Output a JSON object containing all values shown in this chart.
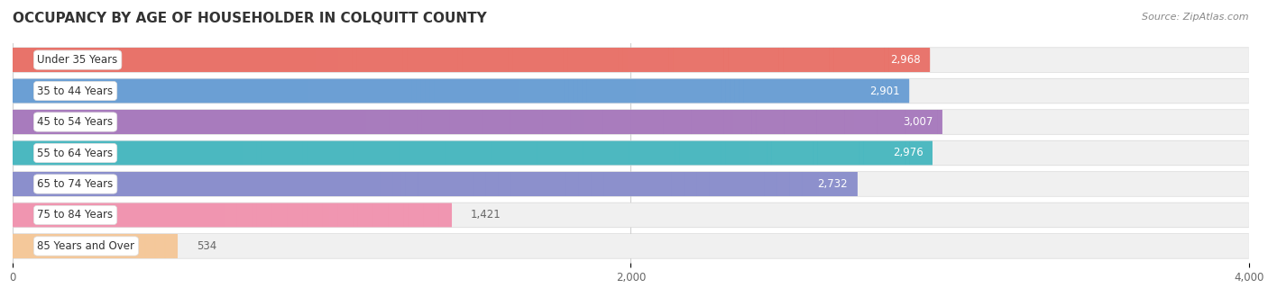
{
  "title": "OCCUPANCY BY AGE OF HOUSEHOLDER IN COLQUITT COUNTY",
  "source": "Source: ZipAtlas.com",
  "categories": [
    "Under 35 Years",
    "35 to 44 Years",
    "45 to 54 Years",
    "55 to 64 Years",
    "65 to 74 Years",
    "75 to 84 Years",
    "85 Years and Over"
  ],
  "values": [
    2968,
    2901,
    3007,
    2976,
    2732,
    1421,
    534
  ],
  "bar_colors": [
    "#E8736A",
    "#6B9FD4",
    "#A87BBD",
    "#4BB8C0",
    "#8B8FCC",
    "#F095B0",
    "#F5C89A"
  ],
  "xlim": [
    0,
    4000
  ],
  "xticks": [
    0,
    2000,
    4000
  ],
  "title_fontsize": 11,
  "label_fontsize": 8.5,
  "value_fontsize": 8.5,
  "source_fontsize": 8,
  "background_color": "#FFFFFF"
}
